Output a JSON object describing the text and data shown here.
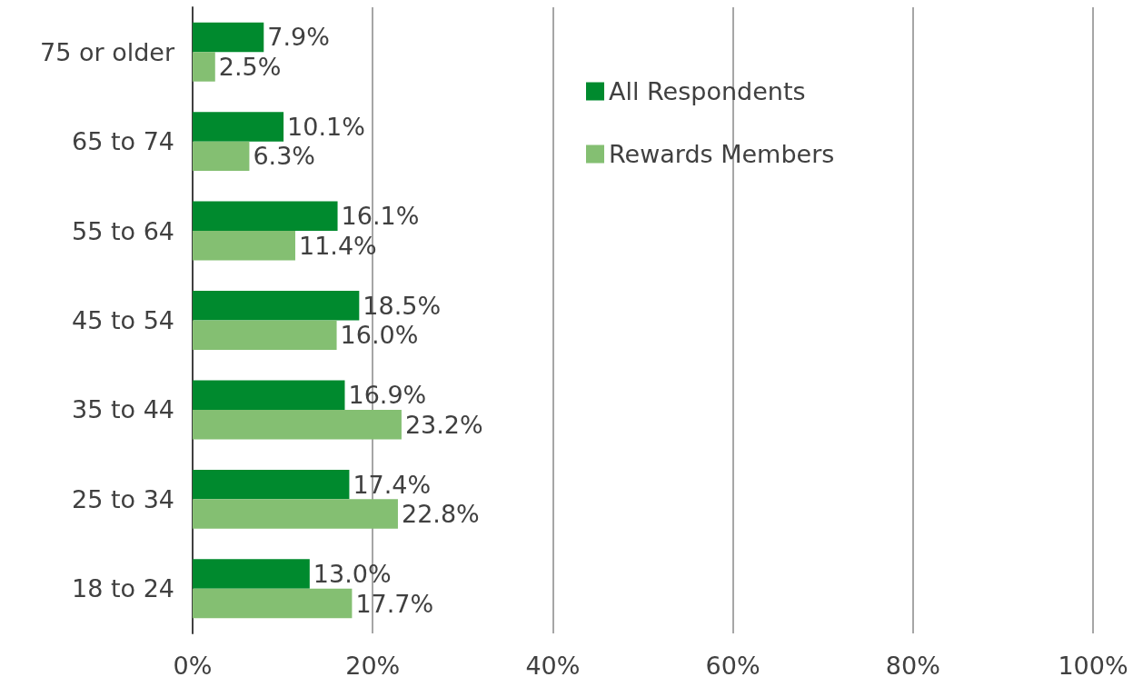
{
  "chart_data": {
    "type": "bar",
    "orientation": "horizontal",
    "categories": [
      "75 or older",
      "65 to 74",
      "55 to 64",
      "45 to 54",
      "35 to 44",
      "25 to 34",
      "18 to 24"
    ],
    "series": [
      {
        "name": "All Respondents",
        "color": "#008a2e",
        "values": [
          7.9,
          10.1,
          16.1,
          18.5,
          16.9,
          17.4,
          13.0
        ],
        "value_labels": [
          "7.9%",
          "10.1%",
          "16.1%",
          "18.5%",
          "16.9%",
          "17.4%",
          "13.0%"
        ]
      },
      {
        "name": "Rewards Members",
        "color": "#84bf72",
        "values": [
          2.5,
          6.3,
          11.4,
          16.0,
          23.2,
          22.8,
          17.7
        ],
        "value_labels": [
          "2.5%",
          "6.3%",
          "11.4%",
          "16.0%",
          "23.2%",
          "22.8%",
          "17.7%"
        ]
      }
    ],
    "xlim": [
      0,
      100
    ],
    "xticks": [
      {
        "value": 0,
        "label": "0%"
      },
      {
        "value": 20,
        "label": "20%"
      },
      {
        "value": 40,
        "label": "40%"
      },
      {
        "value": 60,
        "label": "60%"
      },
      {
        "value": 80,
        "label": "80%"
      },
      {
        "value": 100,
        "label": "100%"
      }
    ],
    "grid": "x",
    "legend": "top right"
  }
}
